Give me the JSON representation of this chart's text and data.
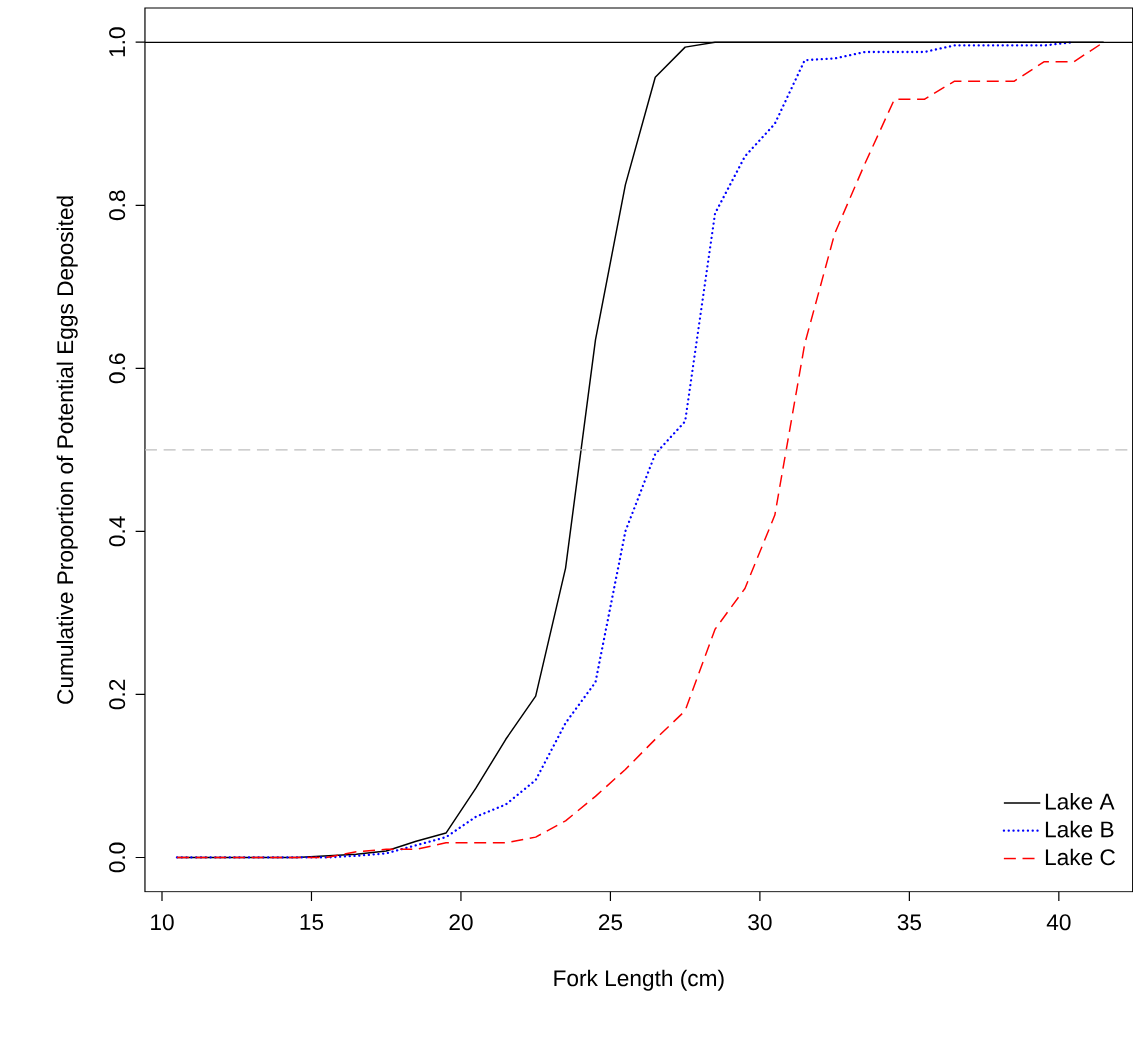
{
  "chart_data": {
    "type": "line",
    "xlabel": "Fork Length (cm)",
    "ylabel": "Cumulative Proportion of Potential Eggs Deposited",
    "xlim": [
      9.43,
      42.47
    ],
    "ylim": [
      -0.042,
      1.042
    ],
    "xticks": [
      10,
      15,
      20,
      25,
      30,
      35,
      40
    ],
    "yticks": [
      {
        "value": 0,
        "label": "0.0"
      },
      {
        "value": 0.2,
        "label": "0.2"
      },
      {
        "value": 0.4,
        "label": "0.4"
      },
      {
        "value": 0.6,
        "label": "0.6"
      },
      {
        "value": 0.8,
        "label": "0.8"
      },
      {
        "value": 1.0,
        "label": "1.0"
      }
    ],
    "legend": "bottom right",
    "grid": false,
    "ref_lines": [
      {
        "axis": "y",
        "value": 1.0,
        "color": "#000000",
        "line_style": "solid"
      },
      {
        "axis": "y",
        "value": 0.5,
        "color": "#bebebe",
        "line_style": "dashed"
      }
    ],
    "series": [
      {
        "name": "Lake A",
        "color": "#000000",
        "line_style": "solid",
        "x": [
          10.5,
          14.5,
          15.5,
          16.5,
          17.5,
          18.5,
          19.5,
          20.5,
          21.5,
          22.5,
          23.5,
          24.5,
          25.5,
          26.5,
          27.5,
          28.5,
          41.5
        ],
        "values": [
          0,
          0,
          0.002,
          0.004,
          0.008,
          0.02,
          0.03,
          0.085,
          0.145,
          0.198,
          0.355,
          0.635,
          0.825,
          0.957,
          0.994,
          1.0,
          1.0
        ]
      },
      {
        "name": "Lake B",
        "color": "#0000ff",
        "line_style": "dotted",
        "x": [
          10.5,
          15.5,
          16.5,
          17.5,
          18.5,
          19.5,
          20.5,
          21.5,
          22.5,
          23.5,
          24.5,
          25.5,
          26.5,
          27.5,
          28.5,
          29.5,
          30.5,
          31.5,
          32.5,
          33.5,
          34.5,
          35.5,
          36.5,
          37.5,
          38.5,
          39.5,
          40.5
        ],
        "values": [
          0,
          0,
          0.002,
          0.005,
          0.015,
          0.025,
          0.05,
          0.065,
          0.095,
          0.165,
          0.215,
          0.4,
          0.495,
          0.535,
          0.79,
          0.86,
          0.9,
          0.978,
          0.98,
          0.988,
          0.988,
          0.988,
          0.996,
          0.996,
          0.996,
          0.996,
          1.0
        ]
      },
      {
        "name": "Lake C",
        "color": "#ff0000",
        "line_style": "dashed",
        "x": [
          10.5,
          15.5,
          16.5,
          17.5,
          18.5,
          19.5,
          20.5,
          21.5,
          22.5,
          23.5,
          24.5,
          25.5,
          26.5,
          27.5,
          28.5,
          29.5,
          30.5,
          31.5,
          32.5,
          33.5,
          34.5,
          35.5,
          36.5,
          37.5,
          38.5,
          39.5,
          40.5,
          41.5
        ],
        "values": [
          0,
          0,
          0.007,
          0.01,
          0.01,
          0.018,
          0.018,
          0.018,
          0.025,
          0.045,
          0.075,
          0.108,
          0.145,
          0.18,
          0.28,
          0.33,
          0.42,
          0.63,
          0.765,
          0.85,
          0.93,
          0.93,
          0.952,
          0.952,
          0.952,
          0.976,
          0.976,
          1.0
        ]
      }
    ]
  }
}
